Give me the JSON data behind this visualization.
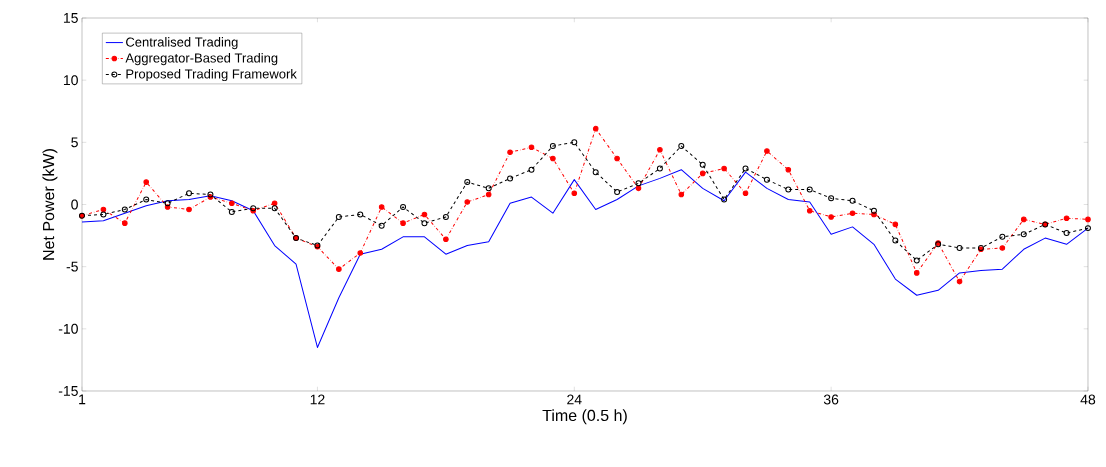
{
  "chart_data": {
    "type": "line",
    "xlabel": "Time (0.5 h)",
    "ylabel": "Net Power (kW)",
    "x": [
      1,
      2,
      3,
      4,
      5,
      6,
      7,
      8,
      9,
      10,
      11,
      12,
      13,
      14,
      15,
      16,
      17,
      18,
      19,
      20,
      21,
      22,
      23,
      24,
      25,
      26,
      27,
      28,
      29,
      30,
      31,
      32,
      33,
      34,
      35,
      36,
      37,
      38,
      39,
      40,
      41,
      42,
      43,
      44,
      45,
      46,
      47,
      48
    ],
    "xlim": [
      1,
      48
    ],
    "xticks": [
      1,
      12,
      24,
      36,
      48
    ],
    "ylim": [
      -15,
      15
    ],
    "yticks": [
      -15,
      -10,
      -5,
      0,
      5,
      10,
      15
    ],
    "grid": false,
    "legend": "top left",
    "series": [
      {
        "name": "Centralised Trading",
        "color": "#0000ff",
        "line_style": "solid",
        "marker": "none",
        "values": [
          -1.4,
          -1.3,
          -0.7,
          -0.1,
          0.3,
          0.4,
          0.7,
          0.3,
          -0.5,
          -3.3,
          -4.8,
          -11.5,
          -7.5,
          -4.0,
          -3.6,
          -2.6,
          -2.6,
          -4.0,
          -3.3,
          -3.0,
          0.1,
          0.6,
          -0.7,
          2.0,
          -0.4,
          0.4,
          1.5,
          2.1,
          2.8,
          1.3,
          0.3,
          2.6,
          1.3,
          0.4,
          0.2,
          -2.4,
          -1.8,
          -3.2,
          -6.0,
          -7.3,
          -6.9,
          -5.5,
          -5.3,
          -5.2,
          -3.6,
          -2.7,
          -3.2,
          -1.9
        ]
      },
      {
        "name": "Aggregator-Based Trading",
        "color": "#ff0000",
        "line_style": "dashdot",
        "marker": "circle",
        "values": [
          -0.9,
          -0.4,
          -1.5,
          1.8,
          -0.2,
          -0.4,
          0.6,
          0.1,
          -0.5,
          0.1,
          -2.7,
          -3.4,
          -5.2,
          -3.9,
          -0.2,
          -1.5,
          -0.8,
          -2.8,
          0.2,
          0.8,
          4.2,
          4.6,
          3.7,
          0.9,
          6.1,
          3.7,
          1.3,
          4.4,
          0.8,
          2.5,
          2.9,
          0.9,
          4.3,
          2.8,
          -0.5,
          -1.0,
          -0.7,
          -0.8,
          -1.6,
          -5.5,
          -3.1,
          -6.2,
          -3.6,
          -3.5,
          -1.2,
          -1.6,
          -1.1,
          -1.2
        ]
      },
      {
        "name": "Proposed Trading Framework",
        "color": "#000000",
        "line_style": "dashed",
        "marker": "circle",
        "values": [
          -0.9,
          -0.8,
          -0.4,
          0.4,
          0.1,
          0.9,
          0.8,
          -0.6,
          -0.3,
          -0.3,
          -2.7,
          -3.3,
          -1.0,
          -0.8,
          -1.7,
          -0.2,
          -1.5,
          -1.0,
          1.8,
          1.3,
          2.1,
          2.8,
          4.7,
          5.0,
          2.6,
          1.0,
          1.7,
          2.9,
          4.7,
          3.2,
          0.4,
          2.9,
          2.0,
          1.2,
          1.2,
          0.5,
          0.3,
          -0.5,
          -2.9,
          -4.5,
          -3.2,
          -3.5,
          -3.5,
          -2.6,
          -2.4,
          -1.6,
          -2.3,
          -1.9
        ]
      }
    ]
  }
}
